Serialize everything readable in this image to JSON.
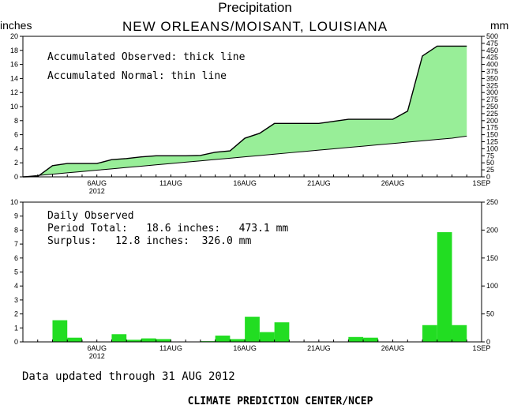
{
  "title": "Precipitation",
  "station": "NEW ORLEANS/MOISANT, LOUISIANA",
  "unit_left": "inches",
  "unit_right": "mm",
  "footer_updated": "Data updated through 31 AUG 2012",
  "footer_credit": "CLIMATE PREDICTION CENTER/NCEP",
  "colors": {
    "fill": "#98ee98",
    "bar": "#22dd22",
    "line": "#000000"
  },
  "chart_data": [
    {
      "type": "area",
      "annotations": [
        "Accumulated Observed: thick line",
        "Accumulated Normal: thin line"
      ],
      "x_tick_labels": [
        "6AUG",
        "11AUG",
        "16AUG",
        "21AUG",
        "26AUG",
        "1SEP"
      ],
      "x_year_label": "2012",
      "ylim": [
        0,
        20
      ],
      "y_ticks": [
        0,
        2,
        4,
        6,
        8,
        10,
        12,
        14,
        16,
        18,
        20
      ],
      "y2lim": [
        0,
        500
      ],
      "y2_ticks": [
        0,
        25,
        50,
        75,
        100,
        125,
        150,
        175,
        200,
        225,
        250,
        275,
        300,
        325,
        350,
        375,
        400,
        425,
        450,
        475,
        500
      ],
      "day": [
        1,
        2,
        3,
        4,
        5,
        6,
        7,
        8,
        9,
        10,
        11,
        12,
        13,
        14,
        15,
        16,
        17,
        18,
        19,
        20,
        21,
        22,
        23,
        24,
        25,
        26,
        27,
        28,
        29,
        30,
        31
      ],
      "series": [
        {
          "name": "Accumulated Observed",
          "values": [
            0.0,
            0.05,
            1.6,
            1.9,
            1.9,
            1.9,
            2.45,
            2.6,
            2.85,
            3.0,
            3.0,
            3.0,
            3.05,
            3.5,
            3.7,
            5.5,
            6.2,
            7.6,
            7.6,
            7.6,
            7.6,
            7.9,
            8.2,
            8.2,
            8.2,
            8.2,
            9.35,
            17.2,
            18.6,
            18.6,
            18.6
          ]
        },
        {
          "name": "Accumulated Normal",
          "values": [
            0.0,
            0.19,
            0.38,
            0.57,
            0.76,
            0.95,
            1.14,
            1.33,
            1.52,
            1.71,
            1.9,
            2.09,
            2.28,
            2.47,
            2.66,
            2.85,
            3.04,
            3.23,
            3.42,
            3.61,
            3.8,
            3.99,
            4.18,
            4.37,
            4.56,
            4.75,
            4.94,
            5.13,
            5.32,
            5.51,
            5.8
          ]
        }
      ]
    },
    {
      "type": "bar",
      "annotations": [
        "Daily Observed",
        "Period Total:   18.6 inches:   473.1 mm",
        "Surplus:   12.8 inches:  326.0 mm"
      ],
      "x_tick_labels": [
        "6AUG",
        "11AUG",
        "16AUG",
        "21AUG",
        "26AUG",
        "1SEP"
      ],
      "x_year_label": "2012",
      "ylim": [
        0,
        10
      ],
      "y_ticks": [
        0,
        1,
        2,
        3,
        4,
        5,
        6,
        7,
        8,
        9,
        10
      ],
      "y2lim": [
        0,
        250
      ],
      "y2_ticks": [
        0,
        50,
        100,
        150,
        200,
        250
      ],
      "day": [
        1,
        2,
        3,
        4,
        5,
        6,
        7,
        8,
        9,
        10,
        11,
        12,
        13,
        14,
        15,
        16,
        17,
        18,
        19,
        20,
        21,
        22,
        23,
        24,
        25,
        26,
        27,
        28,
        29,
        30,
        31
      ],
      "values": [
        0.0,
        0.02,
        1.55,
        0.3,
        0.0,
        0.0,
        0.55,
        0.15,
        0.25,
        0.2,
        0.0,
        0.02,
        0.05,
        0.45,
        0.2,
        1.8,
        0.7,
        1.4,
        0.0,
        0.0,
        0.0,
        0.0,
        0.35,
        0.3,
        0.0,
        0.0,
        0.0,
        1.2,
        7.85,
        1.2,
        0.0
      ]
    }
  ]
}
